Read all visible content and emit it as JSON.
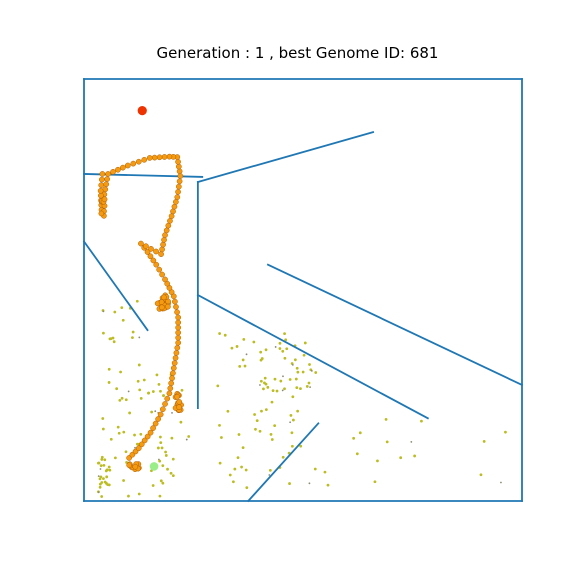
{
  "chart_data": {
    "type": "scatter",
    "title": "Generation : 1 , best Genome ID: 681",
    "xlabel": "",
    "ylabel": "",
    "xlim": [
      0,
      100
    ],
    "ylim": [
      0,
      100
    ],
    "grid": false,
    "colors": {
      "walls": "#1f77b4",
      "goal": "#ee3300",
      "start": "#99ee88",
      "best_path": "#f59b11",
      "best_path_edge": "#b05c00",
      "population": "#bcbd22",
      "population_dim": "#8b8b75"
    },
    "walls": [
      [
        [
          0,
          100
        ],
        [
          100,
          100
        ]
      ],
      [
        [
          100,
          100
        ],
        [
          100,
          0
        ]
      ],
      [
        [
          100,
          0
        ],
        [
          0,
          0
        ]
      ],
      [
        [
          0,
          0
        ],
        [
          0,
          100
        ]
      ],
      [
        [
          0,
          77.5
        ],
        [
          27,
          76.8
        ]
      ],
      [
        [
          26,
          75.6
        ],
        [
          66,
          87.4
        ]
      ],
      [
        [
          26,
          75.6
        ],
        [
          26,
          22
        ]
      ],
      [
        [
          0,
          61.5
        ],
        [
          14.5,
          40.5
        ]
      ],
      [
        [
          26,
          48.8
        ],
        [
          78.5,
          19.6
        ]
      ],
      [
        [
          42,
          56
        ],
        [
          100,
          27.5
        ]
      ],
      [
        [
          37.5,
          0
        ],
        [
          53.5,
          18.4
        ]
      ]
    ],
    "goal": {
      "x": 13.3,
      "y": 92.5
    },
    "start": {
      "x": 16,
      "y": 8.2
    }
  }
}
